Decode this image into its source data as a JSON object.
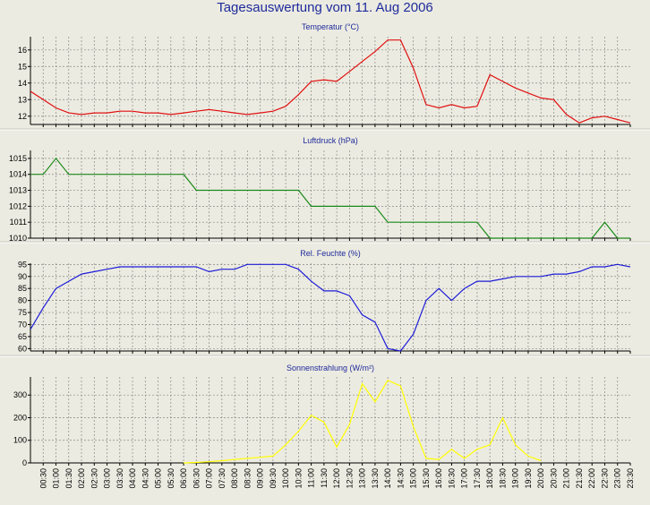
{
  "title": "Tagesauswertung vom 11. Aug 2006",
  "x_tick_labels": [
    "00:30",
    "01:00",
    "01:30",
    "02:00",
    "02:30",
    "03:00",
    "03:30",
    "04:00",
    "04:30",
    "05:00",
    "05:30",
    "06:00",
    "06:30",
    "07:00",
    "07:30",
    "08:00",
    "08:30",
    "09:00",
    "09:30",
    "10:00",
    "10:30",
    "11:00",
    "11:30",
    "12:00",
    "12:30",
    "13:00",
    "13:30",
    "14:00",
    "14:30",
    "15:00",
    "15:30",
    "16:00",
    "16:30",
    "17:00",
    "17:30",
    "18:00",
    "18:30",
    "19:00",
    "19:30",
    "20:00",
    "20:30",
    "21:00",
    "21:30",
    "22:00",
    "22:30",
    "23:00",
    "23:30"
  ],
  "colors": {
    "background": "#ecebe1",
    "title": "#1e2b9c",
    "grid": "#888888",
    "axis": "#000000"
  },
  "chart_data": [
    {
      "type": "line",
      "title": "Temperatur (°C)",
      "ylim": [
        11.5,
        16.8
      ],
      "yticks": [
        12,
        13,
        14,
        15,
        16
      ],
      "ytick_labels": [
        "12",
        "13",
        "14",
        "15",
        "16"
      ],
      "color": "#e01010",
      "x": [
        "00:00",
        "00:30",
        "01:00",
        "01:30",
        "02:00",
        "02:30",
        "03:00",
        "03:30",
        "04:00",
        "04:30",
        "05:00",
        "05:30",
        "06:00",
        "06:30",
        "07:00",
        "07:30",
        "08:00",
        "08:30",
        "09:00",
        "09:30",
        "10:00",
        "10:30",
        "11:00",
        "11:30",
        "12:00",
        "12:30",
        "13:00",
        "13:30",
        "14:00",
        "14:30",
        "15:00",
        "15:30",
        "16:00",
        "16:30",
        "17:00",
        "17:30",
        "18:00",
        "18:30",
        "19:00",
        "19:30",
        "20:00",
        "20:30",
        "21:00",
        "21:30",
        "22:00",
        "22:30",
        "23:00",
        "23:30"
      ],
      "values": [
        13.5,
        13.0,
        12.5,
        12.2,
        12.1,
        12.2,
        12.2,
        12.3,
        12.3,
        12.2,
        12.2,
        12.1,
        12.2,
        12.3,
        12.4,
        12.3,
        12.2,
        12.1,
        12.2,
        12.3,
        12.6,
        13.3,
        14.1,
        14.2,
        14.1,
        14.7,
        15.3,
        15.9,
        16.6,
        16.6,
        14.9,
        12.7,
        12.5,
        12.7,
        12.5,
        12.6,
        14.5,
        14.1,
        13.7,
        13.4,
        13.1,
        13.0,
        12.1,
        11.6,
        11.9,
        12.0,
        11.8,
        11.6
      ]
    },
    {
      "type": "line",
      "title": "Luftdruck (hPa)",
      "ylim": [
        1010,
        1015.5
      ],
      "yticks": [
        1010,
        1011,
        1012,
        1013,
        1014,
        1015
      ],
      "ytick_labels": [
        "1010",
        "1011",
        "1012",
        "1013",
        "1014",
        "1015"
      ],
      "color": "#1a8a1a",
      "x": [
        "00:00",
        "00:30",
        "01:00",
        "01:30",
        "02:00",
        "02:30",
        "03:00",
        "03:30",
        "04:00",
        "04:30",
        "05:00",
        "05:30",
        "06:00",
        "06:30",
        "07:00",
        "07:30",
        "08:00",
        "08:30",
        "09:00",
        "09:30",
        "10:00",
        "10:30",
        "11:00",
        "11:30",
        "12:00",
        "12:30",
        "13:00",
        "13:30",
        "14:00",
        "14:30",
        "15:00",
        "15:30",
        "16:00",
        "16:30",
        "17:00",
        "17:30",
        "18:00",
        "18:30",
        "19:00",
        "19:30",
        "20:00",
        "20:30",
        "21:00",
        "21:30",
        "22:00",
        "22:30",
        "23:00",
        "23:30"
      ],
      "values": [
        1014,
        1014,
        1015,
        1014,
        1014,
        1014,
        1014,
        1014,
        1014,
        1014,
        1014,
        1014,
        1014,
        1013,
        1013,
        1013,
        1013,
        1013,
        1013,
        1013,
        1013,
        1013,
        1012,
        1012,
        1012,
        1012,
        1012,
        1012,
        1011,
        1011,
        1011,
        1011,
        1011,
        1011,
        1011,
        1011,
        1010,
        1010,
        1010,
        1010,
        1010,
        1010,
        1010,
        1010,
        1010,
        1011,
        1010,
        1010
      ]
    },
    {
      "type": "line",
      "title": "Rel. Feuchte (%)",
      "ylim": [
        59,
        95.5
      ],
      "yticks": [
        60,
        65,
        70,
        75,
        80,
        85,
        90,
        95
      ],
      "ytick_labels": [
        "60",
        "65",
        "70",
        "75",
        "80",
        "85",
        "90",
        "95"
      ],
      "color": "#1c1cd8",
      "x": [
        "00:00",
        "00:30",
        "01:00",
        "01:30",
        "02:00",
        "02:30",
        "03:00",
        "03:30",
        "04:00",
        "04:30",
        "05:00",
        "05:30",
        "06:00",
        "06:30",
        "07:00",
        "07:30",
        "08:00",
        "08:30",
        "09:00",
        "09:30",
        "10:00",
        "10:30",
        "11:00",
        "11:30",
        "12:00",
        "12:30",
        "13:00",
        "13:30",
        "14:00",
        "14:30",
        "15:00",
        "15:30",
        "16:00",
        "16:30",
        "17:00",
        "17:30",
        "18:00",
        "18:30",
        "19:00",
        "19:30",
        "20:00",
        "20:30",
        "21:00",
        "21:30",
        "22:00",
        "22:30",
        "23:00",
        "23:30"
      ],
      "values": [
        68,
        77,
        85,
        88,
        91,
        92,
        93,
        94,
        94,
        94,
        94,
        94,
        94,
        94,
        92,
        93,
        93,
        95,
        95,
        95,
        95,
        93,
        88,
        84,
        84,
        82,
        74,
        71,
        60,
        59,
        66,
        80,
        85,
        80,
        85,
        88,
        88,
        89,
        90,
        90,
        90,
        91,
        91,
        92,
        94,
        94,
        95,
        94
      ]
    },
    {
      "type": "line",
      "title": "Sonnenstrahlung (W/m²)",
      "ylim": [
        0,
        380
      ],
      "yticks": [
        0,
        100,
        200,
        300
      ],
      "ytick_labels": [
        "0",
        "100",
        "200",
        "300"
      ],
      "color": "#ffff00",
      "x": [
        "06:00",
        "06:30",
        "07:00",
        "07:30",
        "08:00",
        "08:30",
        "09:00",
        "09:30",
        "10:00",
        "10:30",
        "11:00",
        "11:30",
        "12:00",
        "12:30",
        "13:00",
        "13:30",
        "14:00",
        "14:30",
        "15:00",
        "15:30",
        "16:00",
        "16:30",
        "17:00",
        "17:30",
        "18:00",
        "18:30",
        "19:00",
        "19:30",
        "20:00"
      ],
      "values": [
        0,
        2,
        5,
        10,
        15,
        20,
        25,
        30,
        80,
        140,
        210,
        180,
        70,
        170,
        350,
        270,
        365,
        340,
        160,
        20,
        15,
        60,
        20,
        60,
        80,
        200,
        80,
        30,
        10
      ]
    }
  ]
}
